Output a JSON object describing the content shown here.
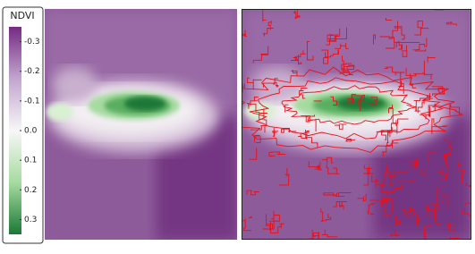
{
  "legend": {
    "title": "NDVI",
    "ylim": [
      -0.35,
      0.35
    ],
    "yticks": [
      -0.3,
      -0.2,
      -0.1,
      {
        "value": 0,
        "label": "0.0"
      },
      0.1,
      0.2,
      0.3
    ],
    "colors": [
      "#762a83",
      "#c2a5cf",
      "#f7f7f7",
      "#a6dba0",
      "#1b7837"
    ]
  }
}
